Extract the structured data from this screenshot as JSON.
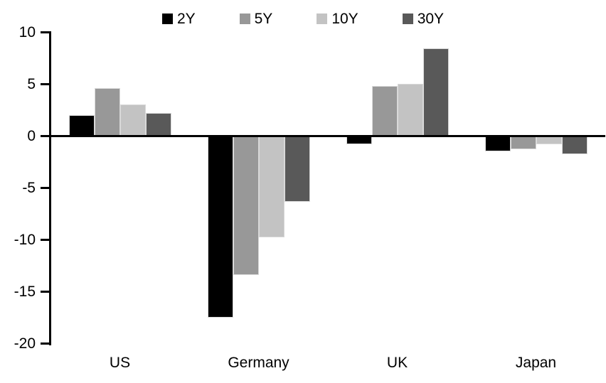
{
  "chart_data": {
    "type": "bar",
    "title": "",
    "categories": [
      "US",
      "Germany",
      "UK",
      "Japan"
    ],
    "series": [
      {
        "name": "2Y",
        "color": "#000000",
        "values": [
          2.0,
          -17.5,
          -0.8,
          -1.5
        ]
      },
      {
        "name": "5Y",
        "color": "#989898",
        "values": [
          4.6,
          -13.4,
          4.8,
          -1.3
        ]
      },
      {
        "name": "10Y",
        "color": "#c3c3c3",
        "values": [
          3.0,
          -9.8,
          5.0,
          -0.8
        ]
      },
      {
        "name": "30Y",
        "color": "#595959",
        "values": [
          2.2,
          -6.4,
          8.4,
          -1.8
        ]
      }
    ],
    "ylim": [
      -20,
      10
    ],
    "yticks": [
      10,
      5,
      0,
      -5,
      -10,
      -15,
      -20
    ],
    "grid": false,
    "legend_position": "top",
    "xlabel": "",
    "ylabel": ""
  }
}
